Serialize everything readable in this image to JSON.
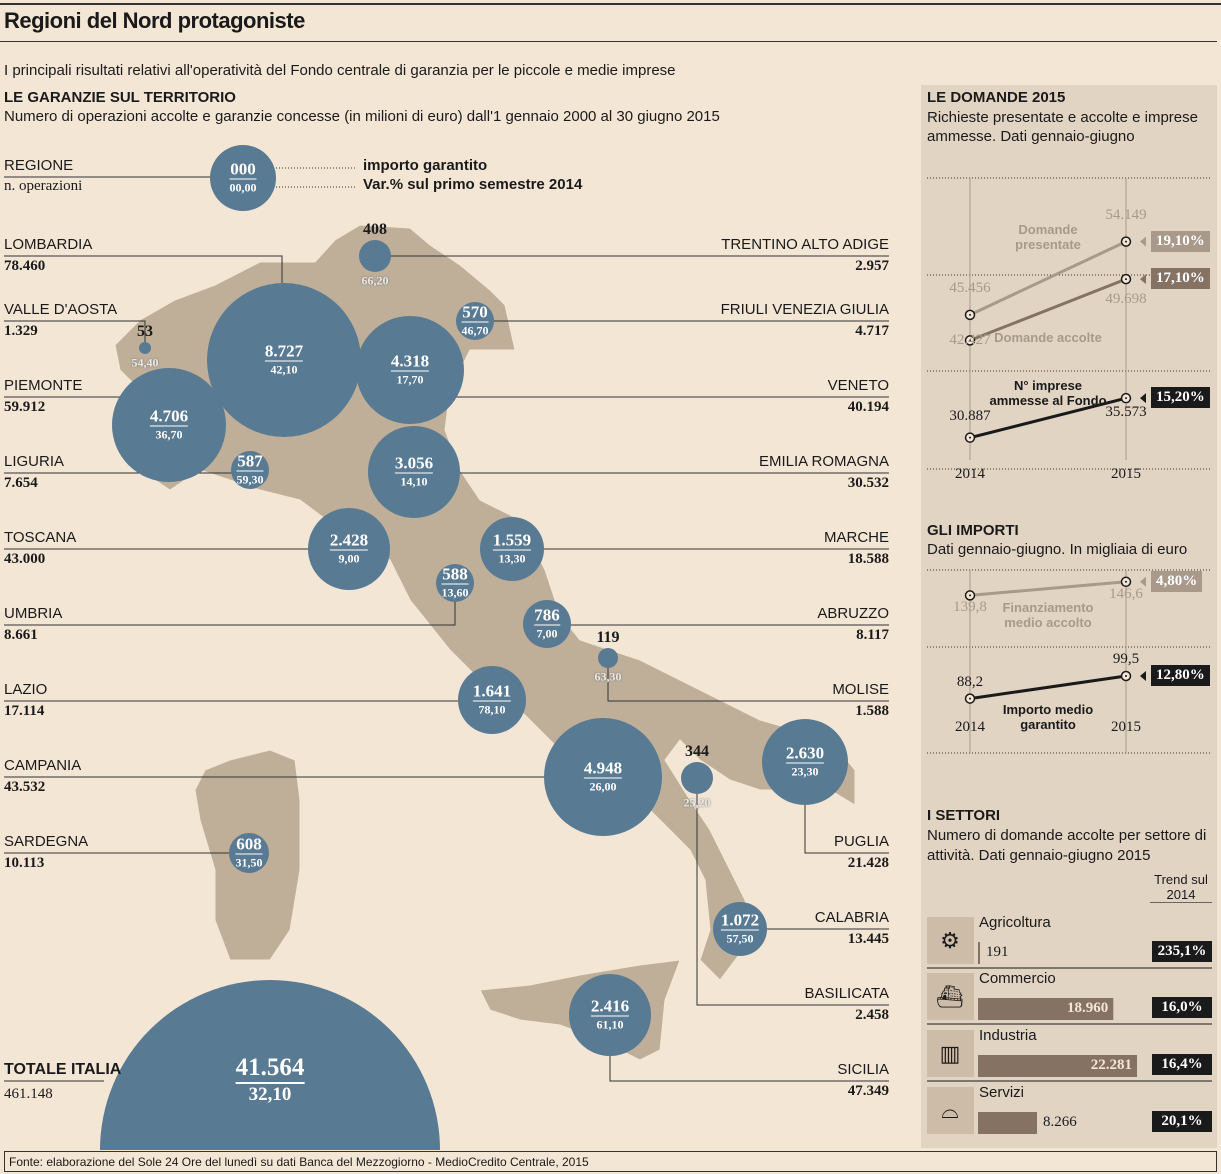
{
  "title": "Regioni del Nord protagoniste",
  "subtitle": "I principali risultati relativi all'operatività del Fondo centrale di garanzia per le piccole e medie imprese",
  "map": {
    "heading": "LE GARANZIE SUL TERRITORIO",
    "desc": "Numero di operazioni accolte e garanzie concesse (in milioni di euro) dall'1 gennaio 2000 al 30 giugno 2015",
    "legend": {
      "region": "REGIONE",
      "ops": "n. operazioni",
      "top": "000",
      "bottom": "00,00",
      "importo": "importo garantito",
      "var": "Var.% sul primo semestre 2014"
    },
    "regions": [
      {
        "name": "LOMBARDIA",
        "ops": "78.460",
        "amount": "8.727",
        "var": "42,10"
      },
      {
        "name": "VALLE D'AOSTA",
        "ops": "1.329",
        "amount": "53",
        "var": "54,40"
      },
      {
        "name": "PIEMONTE",
        "ops": "59.912",
        "amount": "4.706",
        "var": "36,70"
      },
      {
        "name": "LIGURIA",
        "ops": "7.654",
        "amount": "587",
        "var": "59,30"
      },
      {
        "name": "TOSCANA",
        "ops": "43.000",
        "amount": "2.428",
        "var": "9,00"
      },
      {
        "name": "UMBRIA",
        "ops": "8.661",
        "amount": "588",
        "var": "13,60"
      },
      {
        "name": "LAZIO",
        "ops": "17.114",
        "amount": "1.641",
        "var": "78,10"
      },
      {
        "name": "CAMPANIA",
        "ops": "43.532",
        "amount": "4.948",
        "var": "26,00"
      },
      {
        "name": "SARDEGNA",
        "ops": "10.113",
        "amount": "608",
        "var": "31,50"
      },
      {
        "name": "TRENTINO ALTO ADIGE",
        "ops": "2.957",
        "amount": "408",
        "var": "66,20"
      },
      {
        "name": "FRIULI VENEZIA GIULIA",
        "ops": "4.717",
        "amount": "570",
        "var": "46,70"
      },
      {
        "name": "VENETO",
        "ops": "40.194",
        "amount": "4.318",
        "var": "17,70"
      },
      {
        "name": "EMILIA ROMAGNA",
        "ops": "30.532",
        "amount": "3.056",
        "var": "14,10"
      },
      {
        "name": "MARCHE",
        "ops": "18.588",
        "amount": "1.559",
        "var": "13,30"
      },
      {
        "name": "ABRUZZO",
        "ops": "8.117",
        "amount": "786",
        "var": "7,00"
      },
      {
        "name": "MOLISE",
        "ops": "1.588",
        "amount": "119",
        "var": "63,30"
      },
      {
        "name": "PUGLIA",
        "ops": "21.428",
        "amount": "2.630",
        "var": "23,30"
      },
      {
        "name": "CALABRIA",
        "ops": "13.445",
        "amount": "1.072",
        "var": "57,50"
      },
      {
        "name": "BASILICATA",
        "ops": "2.458",
        "amount": "344",
        "var": "25,20"
      },
      {
        "name": "SICILIA",
        "ops": "47.349",
        "amount": "2.416",
        "var": "61,10"
      }
    ],
    "total": {
      "name": "TOTALE ITALIA",
      "ops": "461.148",
      "amount": "41.564",
      "var": "32,10"
    }
  },
  "colors": {
    "bubble": "#587a93",
    "land": "#bfae98",
    "panel": "#e2d4c3",
    "bar": "#857262"
  },
  "chart_data": [
    {
      "type": "line",
      "title": "LE DOMANDE 2015",
      "subtitle": "Richieste presentate e accolte e imprese ammesse. Dati gennaio-giugno",
      "x": [
        "2014",
        "2015"
      ],
      "ylim": [
        28000,
        56000
      ],
      "series": [
        {
          "name": "Domande presentate",
          "values": [
            45456,
            54149
          ],
          "labels": [
            "45.456",
            "54.149"
          ],
          "change": "19,10%",
          "color": "#a8998a"
        },
        {
          "name": "Domande accolte",
          "values": [
            42427,
            49698
          ],
          "labels": [
            "42.427",
            "49.698"
          ],
          "change": "17,10%",
          "color": "#857262"
        },
        {
          "name": "N° imprese ammesse al Fondo",
          "values": [
            30887,
            35573
          ],
          "labels": [
            "30.887",
            "35.573"
          ],
          "change": "15,20%",
          "color": "#1a1a1a"
        }
      ]
    },
    {
      "type": "line",
      "title": "GLI IMPORTI",
      "subtitle": "Dati gennaio-giugno. In migliaia di euro",
      "x": [
        "2014",
        "2015"
      ],
      "ylim": [
        80,
        150
      ],
      "series": [
        {
          "name": "Finanziamento medio accolto",
          "values": [
            139.8,
            146.6
          ],
          "labels": [
            "139,8",
            "146,6"
          ],
          "change": "4,80%",
          "color": "#a8998a"
        },
        {
          "name": "Importo medio garantito",
          "values": [
            88.2,
            99.5
          ],
          "labels": [
            "88,2",
            "99,5"
          ],
          "change": "12,80%",
          "color": "#1a1a1a"
        }
      ]
    },
    {
      "type": "bar",
      "title": "I SETTORI",
      "subtitle": "Numero di domande accolte per settore di attività. Dati gennaio-giugno 2015",
      "trend_header": "Trend sul 2014",
      "xlim": [
        0,
        22281
      ],
      "categories": [
        "Agricoltura",
        "Commercio",
        "Industria",
        "Servizi"
      ],
      "values": [
        191,
        18960,
        22281,
        8266
      ],
      "labels": [
        "191",
        "18.960",
        "22.281",
        "8.266"
      ],
      "trend": [
        "235,1%",
        "16,0%",
        "16,4%",
        "20,1%"
      ],
      "icons": [
        "tractor-icon",
        "ship-icon",
        "factory-icon",
        "tray-icon"
      ]
    }
  ],
  "footer": "Fonte: elaborazione del Sole 24 Ore del lunedì su dati Banca del Mezzogiorno - MedioCredito Centrale, 2015"
}
